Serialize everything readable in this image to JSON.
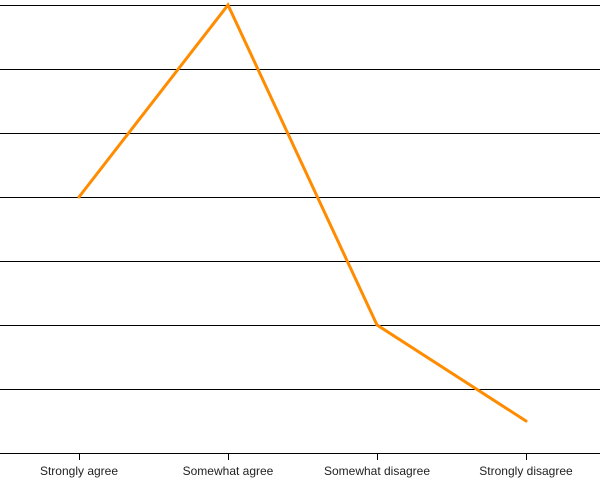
{
  "chart_data": {
    "type": "line",
    "categories": [
      "Strongly agree",
      "Somewhat agree",
      "Somewhat disagree",
      "Strongly disagree"
    ],
    "series": [
      {
        "values": [
          4,
          7,
          2,
          0.5
        ]
      }
    ],
    "ylim": [
      0,
      7
    ],
    "y_gridlines": [
      0,
      1,
      2,
      3,
      4,
      5,
      6,
      7
    ],
    "grid": true,
    "legend": "none",
    "colors": {
      "series": "#ff8c00",
      "grid": "#000000",
      "axis": "#000000"
    }
  }
}
